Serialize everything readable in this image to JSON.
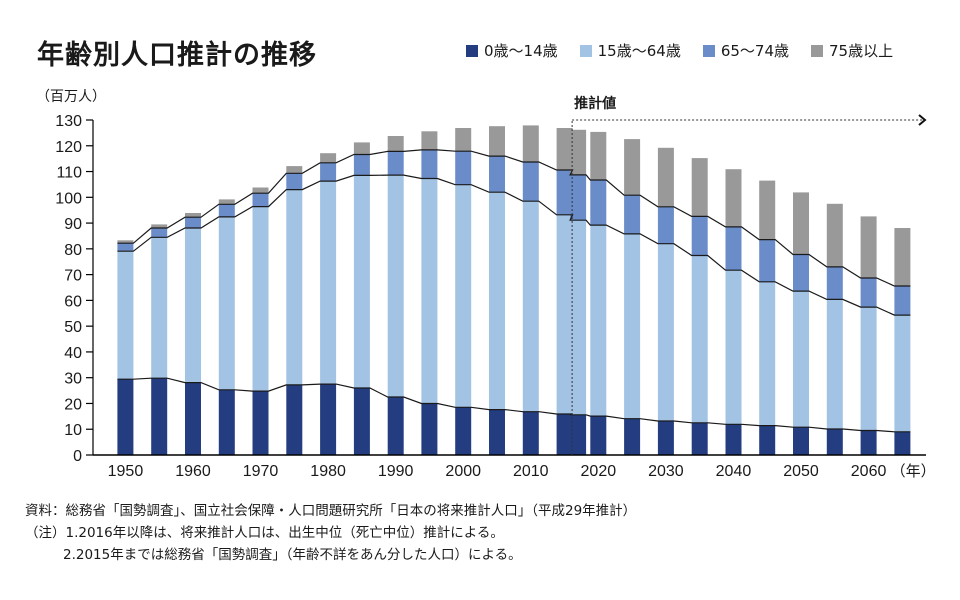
{
  "title": "年齢別人口推計の推移",
  "unit_label": "（百万人）",
  "estimate_label": "推計値",
  "year_suffix": "（年）",
  "colors": {
    "age_0_14": "#233d80",
    "age_15_64": "#a3c3e5",
    "age_65_74": "#6a8cc8",
    "age_75_plus": "#999999",
    "axis": "#000000",
    "line": "#1a1a1a"
  },
  "notes": {
    "source": "資料：総務省「国勢調査」、国立社会保障・人口問題研究所「日本の将来推計人口」（平成29年推計）",
    "note1": "（注）1.2016年以降は、将来推計人口は、出生中位（死亡中位）推計による。",
    "note2": "2.2015年までは総務省「国勢調査」（年齢不詳をあん分した人口）による。"
  },
  "chart_data": {
    "type": "bar",
    "stacked": true,
    "title": "年齢別人口推計の推移",
    "xlabel": "（年）",
    "ylabel": "（百万人）",
    "ylim": [
      0,
      130
    ],
    "yticks": [
      0,
      10,
      20,
      30,
      40,
      50,
      60,
      70,
      80,
      90,
      100,
      110,
      120,
      130
    ],
    "xticks": [
      1950,
      1960,
      1970,
      1980,
      1990,
      2000,
      2010,
      2020,
      2030,
      2040,
      2050,
      2060
    ],
    "x": [
      1950,
      1955,
      1960,
      1965,
      1970,
      1975,
      1980,
      1985,
      1990,
      1995,
      2000,
      2005,
      2010,
      2015,
      2017,
      2020,
      2025,
      2030,
      2035,
      2040,
      2045,
      2050,
      2055,
      2060,
      2065
    ],
    "estimate_start": 2016,
    "legend_position": "top-right",
    "grid": false,
    "series": [
      {
        "name": "0歳～14歳",
        "key": "age_0_14",
        "values": [
          29.4,
          29.8,
          28.1,
          25.3,
          24.8,
          27.2,
          27.5,
          26.0,
          22.5,
          20.0,
          18.5,
          17.6,
          16.8,
          15.9,
          15.6,
          15.1,
          14.1,
          13.2,
          12.5,
          11.9,
          11.4,
          10.8,
          10.1,
          9.5,
          9.0
        ]
      },
      {
        "name": "15歳～64歳",
        "key": "age_15_64",
        "values": [
          49.7,
          54.7,
          60.0,
          67.1,
          71.6,
          75.8,
          78.8,
          82.5,
          86.1,
          87.3,
          86.4,
          84.4,
          81.7,
          77.3,
          75.5,
          74.1,
          71.7,
          68.8,
          64.9,
          59.8,
          55.8,
          52.8,
          50.3,
          47.9,
          45.3
        ]
      },
      {
        "name": "65～74歳",
        "key": "age_65_74",
        "values": [
          3.1,
          3.6,
          4.2,
          4.9,
          5.2,
          6.3,
          7.1,
          8.1,
          9.2,
          11.1,
          13.0,
          14.0,
          15.2,
          17.4,
          17.6,
          17.5,
          15.0,
          14.3,
          15.2,
          16.8,
          16.4,
          14.2,
          12.6,
          11.3,
          11.3
        ]
      },
      {
        "name": "75歳以上",
        "key": "age_75_plus",
        "values": [
          1.1,
          1.4,
          1.6,
          1.9,
          2.2,
          2.8,
          3.7,
          4.7,
          6.0,
          7.2,
          9.0,
          11.6,
          14.2,
          16.3,
          17.5,
          18.7,
          21.8,
          22.9,
          22.6,
          22.4,
          22.9,
          24.1,
          24.5,
          23.9,
          22.5
        ]
      }
    ]
  }
}
